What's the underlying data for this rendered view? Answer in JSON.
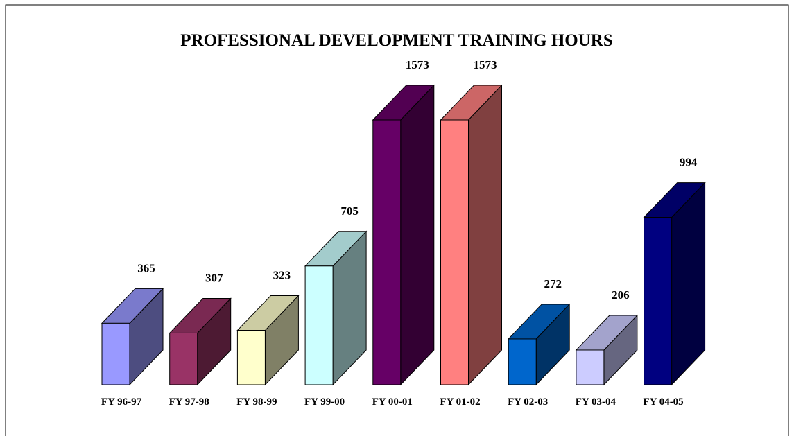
{
  "chart_data": {
    "type": "bar3d",
    "title": "PROFESSIONAL DEVELOPMENT TRAINING HOURS",
    "categories": [
      "FY 96-97",
      "FY 97-98",
      "FY 98-99",
      "FY 99-00",
      "FY 00-01",
      "FY 01-02",
      "FY 02-03",
      "FY 03-04",
      "FY 04-05"
    ],
    "values": [
      365,
      307,
      323,
      705,
      1573,
      1573,
      272,
      206,
      994
    ],
    "colors": [
      "#9999ff",
      "#993366",
      "#ffffcc",
      "#ccffff",
      "#660066",
      "#ff8080",
      "#0066cc",
      "#ccccff",
      "#000080"
    ]
  }
}
